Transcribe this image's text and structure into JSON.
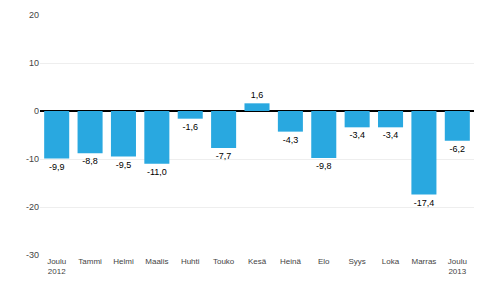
{
  "chart_data": {
    "type": "bar",
    "categories": [
      "Joulu\n2012",
      "Tammi",
      "Helmi",
      "Maalis",
      "Huhti",
      "Touko",
      "Kesä",
      "Heinä",
      "Elo",
      "Syys",
      "Loka",
      "Marras",
      "Joulu\n2013"
    ],
    "values": [
      -9.9,
      -8.8,
      -9.5,
      -11.0,
      -1.6,
      -7.7,
      1.6,
      -4.3,
      -9.8,
      -3.4,
      -3.4,
      -17.4,
      -6.2
    ],
    "value_labels": [
      "-9,9",
      "-8,8",
      "-9,5",
      "-11,0",
      "-1,6",
      "-7,7",
      "1,6",
      "-4,3",
      "-9,8",
      "-3,4",
      "-3,4",
      "-17,4",
      "-6,2"
    ],
    "data_labels": true,
    "color": "#29a8e0",
    "ylim": [
      -30,
      20
    ],
    "yticks": [
      -30,
      -20,
      -10,
      0,
      10,
      20
    ],
    "grid": true
  }
}
